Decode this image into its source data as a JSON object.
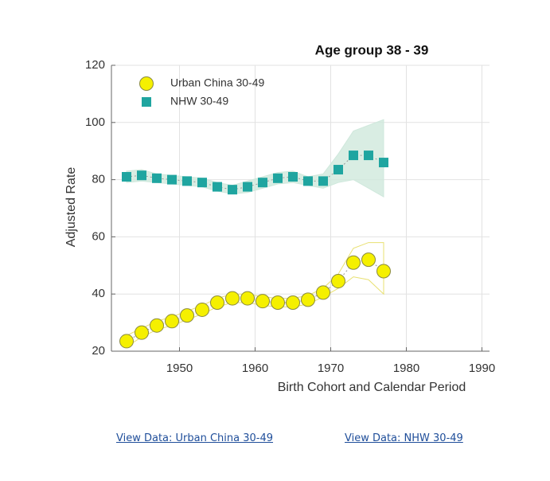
{
  "chart_data": {
    "type": "scatter",
    "title": "Age group 38 - 39",
    "x_label": "Birth Cohort and Calendar Period",
    "y_label": "Adjusted Rate",
    "x": [
      1943,
      1945,
      1947,
      1949,
      1951,
      1953,
      1955,
      1957,
      1959,
      1961,
      1963,
      1965,
      1967,
      1969,
      1971,
      1973,
      1975,
      1977
    ],
    "xlim": [
      1941,
      1991
    ],
    "xticks": [
      1950,
      1960,
      1970,
      1980,
      1990
    ],
    "ylim": [
      20,
      120
    ],
    "yticks": [
      20,
      40,
      60,
      80,
      100,
      120
    ],
    "grid": true,
    "series": [
      {
        "name": "Urban China 30-49",
        "color": "#f5f000",
        "marker": "circle",
        "values": [
          23.5,
          26.5,
          29,
          30.5,
          32.5,
          34.5,
          37,
          38.5,
          38.5,
          37.5,
          37,
          37,
          38,
          40.5,
          44.5,
          51,
          52,
          48
        ],
        "band": {
          "color": "#e8e070",
          "lower": [
            21.5,
            25,
            27.5,
            29,
            31,
            33,
            35.5,
            37,
            37,
            36,
            35.5,
            35.5,
            36.5,
            39,
            42,
            46,
            45,
            40
          ],
          "upper": [
            25.5,
            28,
            30.5,
            32,
            34,
            36,
            38.5,
            40,
            40,
            39,
            38.5,
            38.5,
            39.5,
            42,
            47,
            56,
            58,
            58
          ]
        }
      },
      {
        "name": "NHW 30-49",
        "color": "#1fa5a0",
        "marker": "square",
        "values": [
          81,
          81.5,
          80.5,
          80,
          79.5,
          79,
          77.5,
          76.5,
          77.5,
          79,
          80.5,
          81,
          79.5,
          79.5,
          83.5,
          88.5,
          88.5,
          86
        ],
        "band": {
          "color": "#cfe8dc",
          "lower": [
            79,
            79.5,
            79,
            78.5,
            78,
            77.5,
            76,
            75,
            75.5,
            77,
            78.5,
            79,
            78,
            77,
            79,
            80,
            77,
            74
          ],
          "upper": [
            83,
            83.5,
            82,
            81.5,
            81,
            80.5,
            79,
            78,
            79.5,
            81,
            82.5,
            83,
            81,
            82,
            89,
            97,
            99,
            101
          ]
        }
      }
    ]
  },
  "links": [
    "View Data: Urban China 30-49",
    "View Data:  NHW 30-49"
  ]
}
